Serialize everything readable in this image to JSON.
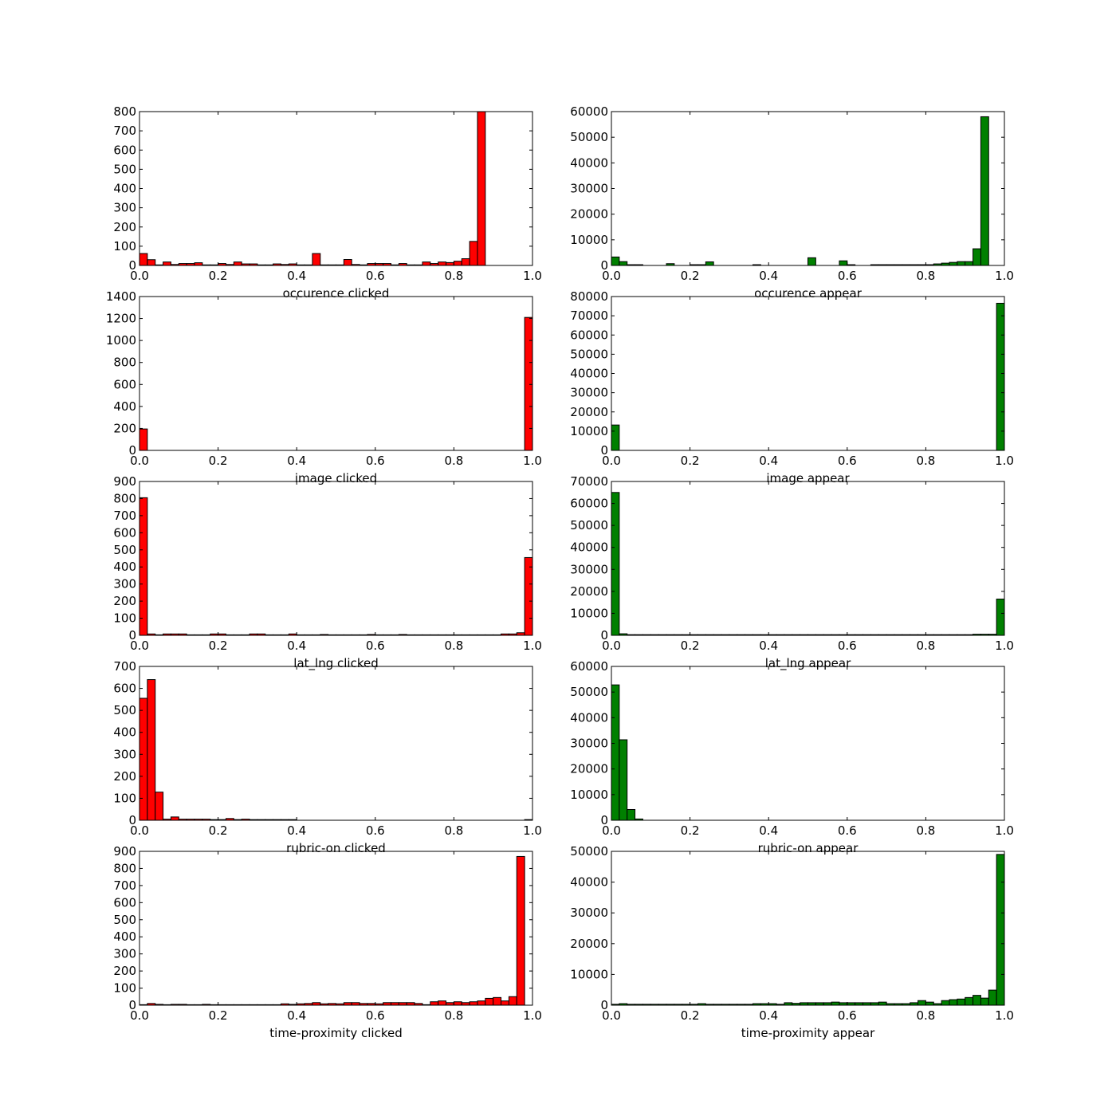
{
  "colors": {
    "clicked": "#ff0000",
    "appear": "#008000",
    "edge": "#000000",
    "background": "#ffffff"
  },
  "chart_data": [
    {
      "type": "bar",
      "xlabel": "occurence clicked",
      "xlim": [
        0,
        1
      ],
      "ylim": [
        0,
        800
      ],
      "xticks": [
        "0.0",
        "0.2",
        "0.4",
        "0.6",
        "0.8",
        "1.0"
      ],
      "yticks": [
        "0",
        "100",
        "200",
        "300",
        "400",
        "500",
        "600",
        "700",
        "800"
      ],
      "bin_width": 0.02,
      "color": "clicked",
      "values": [
        62,
        30,
        3,
        18,
        5,
        10,
        10,
        14,
        3,
        3,
        10,
        5,
        18,
        8,
        8,
        3,
        3,
        8,
        5,
        8,
        3,
        3,
        62,
        3,
        3,
        3,
        31,
        5,
        3,
        10,
        10,
        10,
        3,
        10,
        3,
        3,
        18,
        10,
        18,
        15,
        22,
        35,
        125,
        800,
        0,
        0,
        0,
        0,
        0,
        0
      ]
    },
    {
      "type": "bar",
      "xlabel": "occurence appear",
      "xlim": [
        0,
        1
      ],
      "ylim": [
        0,
        60000
      ],
      "xticks": [
        "0.0",
        "0.2",
        "0.4",
        "0.6",
        "0.8",
        "1.0"
      ],
      "yticks": [
        "0",
        "10000",
        "20000",
        "30000",
        "40000",
        "50000",
        "60000"
      ],
      "bin_width": 0.02,
      "color": "appear",
      "values": [
        3300,
        1500,
        300,
        300,
        0,
        0,
        0,
        700,
        0,
        0,
        300,
        300,
        1400,
        0,
        0,
        0,
        0,
        0,
        300,
        0,
        0,
        0,
        0,
        0,
        0,
        3000,
        0,
        0,
        0,
        1800,
        300,
        0,
        0,
        300,
        300,
        300,
        300,
        300,
        300,
        300,
        300,
        600,
        900,
        1200,
        1500,
        1500,
        6500,
        58000,
        0,
        0
      ]
    },
    {
      "type": "bar",
      "xlabel": "image clicked",
      "xlim": [
        0,
        1
      ],
      "ylim": [
        0,
        1400
      ],
      "xticks": [
        "0.0",
        "0.2",
        "0.4",
        "0.6",
        "0.8",
        "1.0"
      ],
      "yticks": [
        "0",
        "200",
        "400",
        "600",
        "800",
        "1000",
        "1200",
        "1400"
      ],
      "bin_width": 0.02,
      "color": "clicked",
      "values": [
        195,
        0,
        0,
        0,
        0,
        0,
        0,
        0,
        0,
        0,
        0,
        0,
        0,
        0,
        0,
        0,
        0,
        0,
        0,
        0,
        0,
        0,
        0,
        0,
        0,
        0,
        0,
        0,
        0,
        0,
        0,
        0,
        0,
        0,
        0,
        0,
        0,
        0,
        0,
        0,
        0,
        0,
        0,
        0,
        0,
        0,
        0,
        0,
        0,
        1210
      ]
    },
    {
      "type": "bar",
      "xlabel": "image appear",
      "xlim": [
        0,
        1
      ],
      "ylim": [
        0,
        80000
      ],
      "xticks": [
        "0.0",
        "0.2",
        "0.4",
        "0.6",
        "0.8",
        "1.0"
      ],
      "yticks": [
        "0",
        "10000",
        "20000",
        "30000",
        "40000",
        "50000",
        "60000",
        "70000",
        "80000"
      ],
      "bin_width": 0.02,
      "color": "appear",
      "values": [
        13200,
        0,
        0,
        0,
        0,
        0,
        0,
        0,
        0,
        0,
        0,
        0,
        0,
        0,
        0,
        0,
        0,
        0,
        0,
        0,
        0,
        0,
        0,
        0,
        0,
        0,
        0,
        0,
        0,
        0,
        0,
        0,
        0,
        0,
        0,
        0,
        0,
        0,
        0,
        0,
        0,
        0,
        0,
        0,
        0,
        0,
        0,
        0,
        0,
        76500
      ]
    },
    {
      "type": "bar",
      "xlabel": "lat_lng clicked",
      "xlim": [
        0,
        1
      ],
      "ylim": [
        0,
        900
      ],
      "xticks": [
        "0.0",
        "0.2",
        "0.4",
        "0.6",
        "0.8",
        "1.0"
      ],
      "yticks": [
        "0",
        "100",
        "200",
        "300",
        "400",
        "500",
        "600",
        "700",
        "800",
        "900"
      ],
      "bin_width": 0.02,
      "color": "clicked",
      "values": [
        805,
        8,
        3,
        8,
        8,
        8,
        3,
        3,
        3,
        8,
        8,
        3,
        3,
        3,
        8,
        8,
        3,
        3,
        3,
        8,
        3,
        3,
        3,
        5,
        3,
        3,
        3,
        3,
        3,
        5,
        3,
        3,
        3,
        5,
        3,
        3,
        3,
        3,
        3,
        3,
        3,
        3,
        3,
        3,
        3,
        3,
        8,
        8,
        15,
        455
      ]
    },
    {
      "type": "bar",
      "xlabel": "lat_lng appear",
      "xlim": [
        0,
        1
      ],
      "ylim": [
        0,
        70000
      ],
      "xticks": [
        "0.0",
        "0.2",
        "0.4",
        "0.6",
        "0.8",
        "1.0"
      ],
      "yticks": [
        "0",
        "10000",
        "20000",
        "30000",
        "40000",
        "50000",
        "60000",
        "70000"
      ],
      "bin_width": 0.02,
      "color": "appear",
      "values": [
        65000,
        700,
        300,
        300,
        300,
        300,
        300,
        300,
        300,
        300,
        300,
        300,
        300,
        300,
        300,
        300,
        300,
        300,
        300,
        300,
        300,
        300,
        300,
        300,
        300,
        300,
        300,
        300,
        300,
        300,
        300,
        300,
        300,
        300,
        300,
        300,
        300,
        300,
        300,
        300,
        300,
        300,
        300,
        300,
        300,
        300,
        500,
        500,
        500,
        16500
      ]
    },
    {
      "type": "bar",
      "xlabel": "rubric-on clicked",
      "xlim": [
        0,
        1
      ],
      "ylim": [
        0,
        700
      ],
      "xticks": [
        "0.0",
        "0.2",
        "0.4",
        "0.6",
        "0.8",
        "1.0"
      ],
      "yticks": [
        "0",
        "100",
        "200",
        "300",
        "400",
        "500",
        "600",
        "700"
      ],
      "bin_width": 0.02,
      "color": "clicked",
      "values": [
        555,
        640,
        128,
        5,
        15,
        5,
        5,
        5,
        5,
        3,
        3,
        8,
        3,
        5,
        3,
        3,
        3,
        3,
        3,
        3,
        0,
        0,
        0,
        0,
        0,
        0,
        0,
        0,
        0,
        0,
        0,
        0,
        0,
        0,
        0,
        0,
        0,
        0,
        0,
        0,
        0,
        0,
        0,
        0,
        0,
        0,
        0,
        0,
        0,
        3
      ]
    },
    {
      "type": "bar",
      "xlabel": "rubric-on appear",
      "xlim": [
        0,
        1
      ],
      "ylim": [
        0,
        60000
      ],
      "xticks": [
        "0.0",
        "0.2",
        "0.4",
        "0.6",
        "0.8",
        "1.0"
      ],
      "yticks": [
        "0",
        "10000",
        "20000",
        "30000",
        "40000",
        "50000",
        "60000"
      ],
      "bin_width": 0.02,
      "color": "appear",
      "values": [
        52800,
        31400,
        4200,
        500,
        0,
        0,
        0,
        0,
        0,
        0,
        0,
        0,
        0,
        0,
        0,
        0,
        0,
        0,
        0,
        0,
        0,
        0,
        0,
        0,
        0,
        0,
        0,
        0,
        0,
        0,
        0,
        0,
        0,
        0,
        0,
        0,
        0,
        0,
        0,
        0,
        0,
        0,
        0,
        0,
        0,
        0,
        0,
        0,
        0,
        0
      ]
    },
    {
      "type": "bar",
      "xlabel": "time-proximity clicked",
      "xlim": [
        0,
        1
      ],
      "ylim": [
        0,
        900
      ],
      "xticks": [
        "0.0",
        "0.2",
        "0.4",
        "0.6",
        "0.8",
        "1.0"
      ],
      "yticks": [
        "0",
        "100",
        "200",
        "300",
        "400",
        "500",
        "600",
        "700",
        "800",
        "900"
      ],
      "bin_width": 0.02,
      "color": "clicked",
      "values": [
        3,
        10,
        5,
        3,
        5,
        5,
        3,
        3,
        5,
        3,
        3,
        3,
        3,
        3,
        3,
        3,
        3,
        3,
        8,
        5,
        8,
        10,
        15,
        8,
        10,
        8,
        15,
        15,
        10,
        10,
        8,
        15,
        15,
        15,
        15,
        10,
        3,
        20,
        25,
        15,
        20,
        15,
        20,
        25,
        40,
        45,
        25,
        50,
        870,
        0
      ]
    },
    {
      "type": "bar",
      "xlabel": "time-proximity appear",
      "xlim": [
        0,
        1
      ],
      "ylim": [
        0,
        50000
      ],
      "xticks": [
        "0.0",
        "0.2",
        "0.4",
        "0.6",
        "0.8",
        "1.0"
      ],
      "yticks": [
        "0",
        "10000",
        "20000",
        "30000",
        "40000",
        "50000"
      ],
      "bin_width": 0.02,
      "color": "appear",
      "values": [
        300,
        500,
        300,
        300,
        300,
        300,
        300,
        300,
        300,
        300,
        300,
        500,
        300,
        300,
        300,
        300,
        300,
        300,
        500,
        500,
        500,
        300,
        800,
        600,
        800,
        800,
        800,
        800,
        1000,
        800,
        800,
        800,
        800,
        800,
        1000,
        500,
        500,
        500,
        800,
        1500,
        1000,
        500,
        1500,
        1800,
        2000,
        2500,
        3200,
        2300,
        4900,
        49000
      ]
    }
  ]
}
